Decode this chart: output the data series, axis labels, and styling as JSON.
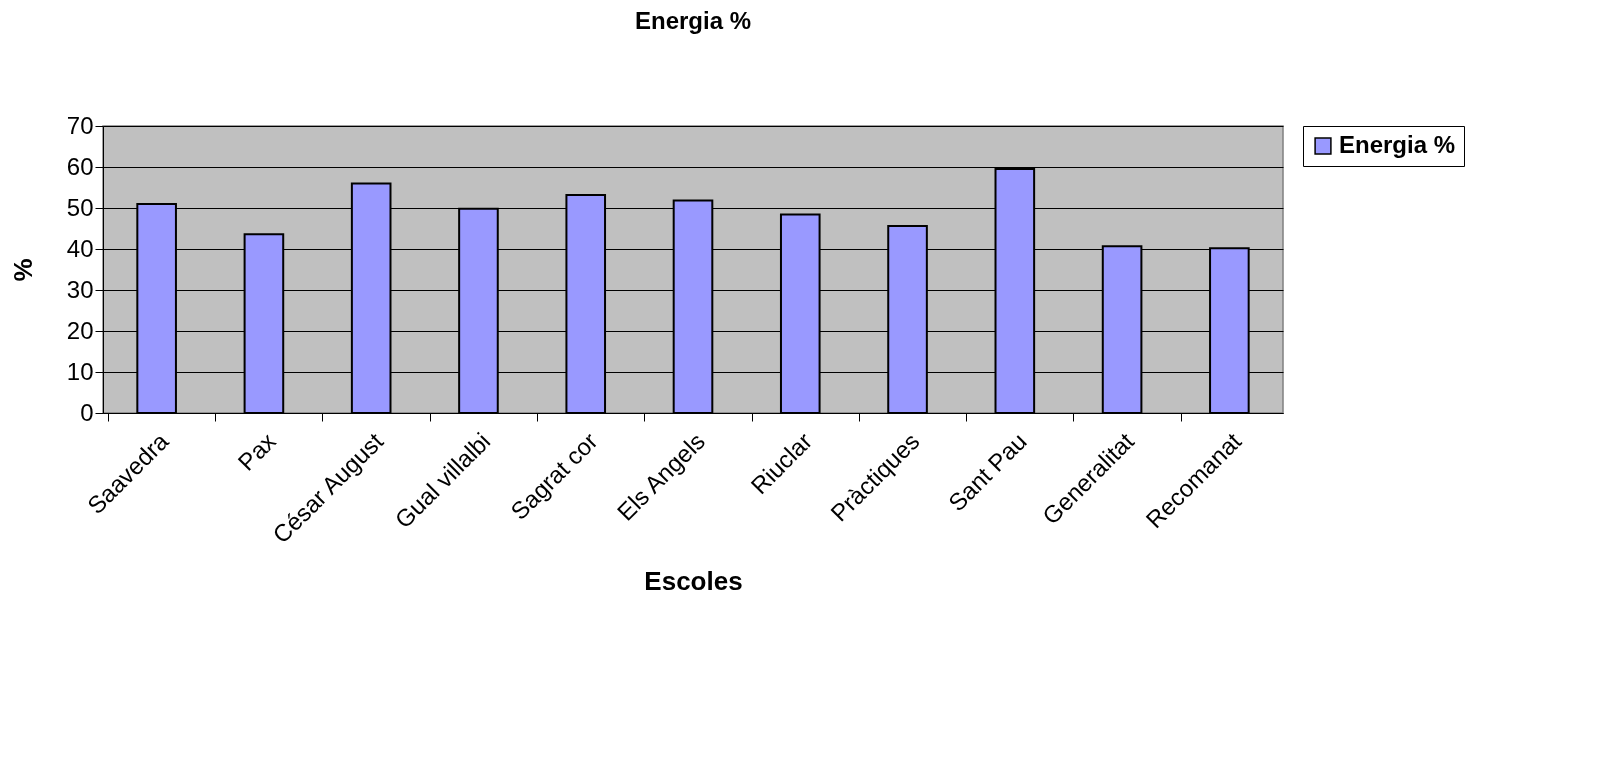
{
  "chart_data": {
    "type": "bar",
    "title": "Energia %",
    "xlabel": "Escoles",
    "ylabel": "%",
    "categories": [
      "Saavedra",
      "Pax",
      "César August",
      "Gual villalbi",
      "Sagrat cor",
      "Els Angels",
      "Riuclar",
      "Pràctiques",
      "Sant Pau",
      "Generalitat",
      "Recomanat"
    ],
    "series": [
      {
        "name": "Energia %",
        "color": "#9999ff",
        "values": [
          51,
          43.6,
          56,
          49.8,
          53.2,
          51.8,
          48.4,
          45.6,
          59.5,
          40.7,
          40.2
        ]
      }
    ],
    "ylim": [
      0,
      70
    ],
    "yticks": [
      0,
      10,
      20,
      30,
      40,
      50,
      60,
      70
    ],
    "grid": "y",
    "legend": "right"
  }
}
